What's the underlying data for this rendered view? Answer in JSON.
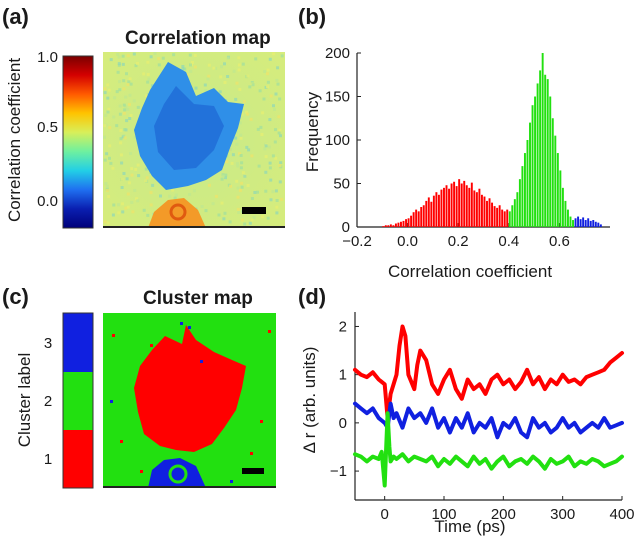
{
  "panels": {
    "a": {
      "letter": "(a)",
      "title": "Correlation map",
      "colorbar_label": "Correlation coefficient",
      "colorbar_ticks": [
        "1.0",
        "0.5",
        "0.0"
      ],
      "colormap": [
        "#7a0000",
        "#d40000",
        "#ff5a00",
        "#ffc400",
        "#d8ef5a",
        "#6ef0a0",
        "#22cfe6",
        "#1f6ff0",
        "#0a1fb0",
        "#00007a"
      ]
    },
    "b": {
      "letter": "(b)",
      "ylabel": "Frequency",
      "xlabel": "Correlation coefficient",
      "xticks": [
        "−0.2",
        "0.0",
        "0.2",
        "0.4",
        "0.6"
      ],
      "yticks": [
        "0",
        "50",
        "100",
        "150",
        "200"
      ]
    },
    "c": {
      "letter": "(c)",
      "title": "Cluster map",
      "colorbar_label": "Cluster label",
      "colorbar_ticks": [
        "3",
        "2",
        "1"
      ],
      "cluster_colors": {
        "1": "#ff0000",
        "2": "#22e010",
        "3": "#1020e0"
      }
    },
    "d": {
      "letter": "(d)",
      "ylabel": "Δ r (arb. units)",
      "xlabel": "Time (ps)",
      "xticks": [
        "0",
        "100",
        "200",
        "300",
        "400"
      ],
      "yticks": [
        "2",
        "1",
        "0",
        "−1"
      ]
    }
  },
  "chart_data": [
    {
      "type": "heatmap",
      "panel": "a",
      "title": "Correlation map",
      "colorbar_label": "Correlation coefficient",
      "colorbar_range": [
        -0.15,
        1.0
      ],
      "colorbar_ticks": [
        1.0,
        0.5,
        0.0
      ],
      "regions": [
        {
          "region": "background",
          "value": 0.52
        },
        {
          "region": "central blob",
          "value": 0.25
        },
        {
          "region": "bottom feature",
          "value": 0.75
        }
      ]
    },
    {
      "type": "bar",
      "panel": "b",
      "xlabel": "Correlation coefficient",
      "ylabel": "Frequency",
      "xlim": [
        -0.2,
        0.8
      ],
      "ylim": [
        0,
        200
      ],
      "bin_width": 0.01,
      "series": [
        {
          "color": "#ff0000",
          "x": [
            -0.1,
            -0.09,
            -0.08,
            -0.07,
            -0.06,
            -0.05,
            -0.04,
            -0.03,
            -0.02,
            -0.01,
            0.0,
            0.01,
            0.02,
            0.03,
            0.04,
            0.05,
            0.06,
            0.07,
            0.08,
            0.09,
            0.1,
            0.11,
            0.12,
            0.13,
            0.14,
            0.15,
            0.16,
            0.17,
            0.18,
            0.19,
            0.2,
            0.21,
            0.22,
            0.23,
            0.24,
            0.25,
            0.26,
            0.27,
            0.28,
            0.29,
            0.3,
            0.31,
            0.32,
            0.33,
            0.34,
            0.35,
            0.36,
            0.37,
            0.38,
            0.39
          ],
          "values": [
            1,
            2,
            2,
            3,
            2,
            4,
            5,
            6,
            7,
            9,
            10,
            13,
            17,
            20,
            18,
            23,
            25,
            30,
            34,
            29,
            36,
            40,
            37,
            43,
            45,
            48,
            44,
            50,
            52,
            47,
            55,
            50,
            53,
            48,
            45,
            51,
            42,
            40,
            44,
            37,
            35,
            30,
            33,
            28,
            24,
            22,
            25,
            20,
            18,
            20
          ]
        },
        {
          "color": "#22e010",
          "x": [
            0.4,
            0.41,
            0.42,
            0.43,
            0.44,
            0.45,
            0.46,
            0.47,
            0.48,
            0.49,
            0.5,
            0.51,
            0.52,
            0.53,
            0.54,
            0.55,
            0.56,
            0.57,
            0.58,
            0.59,
            0.6,
            0.61,
            0.62,
            0.63,
            0.64,
            0.65
          ],
          "values": [
            18,
            25,
            32,
            40,
            55,
            70,
            85,
            100,
            120,
            140,
            150,
            165,
            180,
            200,
            175,
            170,
            150,
            125,
            105,
            85,
            65,
            45,
            30,
            20,
            12,
            8
          ]
        },
        {
          "color": "#1020e0",
          "x": [
            0.66,
            0.67,
            0.68,
            0.69,
            0.7,
            0.71,
            0.72,
            0.73,
            0.74,
            0.75,
            0.76
          ],
          "values": [
            10,
            12,
            9,
            11,
            8,
            10,
            7,
            8,
            6,
            5,
            3
          ]
        }
      ]
    },
    {
      "type": "heatmap",
      "panel": "c",
      "title": "Cluster map",
      "colorbar_label": "Cluster label",
      "categories": [
        1,
        2,
        3
      ],
      "regions": [
        {
          "region": "background",
          "cluster": 2
        },
        {
          "region": "central blob",
          "cluster": 1
        },
        {
          "region": "bottom feature",
          "cluster": 3
        }
      ]
    },
    {
      "type": "line",
      "panel": "d",
      "xlabel": "Time (ps)",
      "ylabel": "Δ r (arb. units)",
      "xlim": [
        -50,
        400
      ],
      "ylim": [
        -1.6,
        2.3
      ],
      "series": [
        {
          "color": "#ff0000",
          "x": [
            -50,
            -40,
            -30,
            -20,
            -10,
            0,
            5,
            10,
            20,
            25,
            30,
            35,
            40,
            50,
            55,
            60,
            70,
            80,
            90,
            100,
            110,
            120,
            130,
            140,
            150,
            160,
            170,
            180,
            190,
            200,
            210,
            220,
            230,
            240,
            250,
            260,
            270,
            280,
            290,
            300,
            310,
            320,
            330,
            340,
            350,
            360,
            370,
            380,
            390,
            400
          ],
          "values": [
            1.1,
            1.0,
            0.95,
            1.05,
            0.9,
            0.8,
            0.1,
            0.6,
            1.0,
            1.6,
            2.0,
            1.8,
            1.0,
            0.7,
            1.2,
            1.5,
            1.3,
            0.8,
            0.6,
            0.9,
            1.1,
            0.7,
            0.5,
            0.9,
            0.7,
            0.8,
            0.6,
            0.9,
            1.0,
            0.8,
            0.9,
            0.7,
            0.85,
            1.1,
            0.8,
            0.95,
            0.7,
            0.9,
            0.8,
            1.0,
            0.85,
            0.9,
            0.8,
            0.95,
            1.0,
            1.05,
            1.1,
            1.25,
            1.35,
            1.45
          ]
        },
        {
          "color": "#1020e0",
          "x": [
            -50,
            -40,
            -30,
            -20,
            -10,
            0,
            5,
            10,
            15,
            20,
            30,
            40,
            50,
            60,
            70,
            80,
            90,
            100,
            110,
            120,
            130,
            140,
            150,
            160,
            170,
            180,
            190,
            200,
            210,
            220,
            230,
            240,
            250,
            260,
            270,
            280,
            290,
            300,
            310,
            320,
            330,
            340,
            350,
            360,
            370,
            380,
            390,
            400
          ],
          "values": [
            0.4,
            0.3,
            0.2,
            0.3,
            0.1,
            0.0,
            -0.1,
            0.4,
            0.1,
            0.2,
            -0.1,
            0.3,
            0.1,
            0.2,
            0.0,
            0.3,
            -0.1,
            0.1,
            -0.2,
            0.1,
            -0.1,
            0.2,
            -0.2,
            0.0,
            -0.1,
            0.1,
            -0.3,
            0.0,
            -0.1,
            0.1,
            -0.2,
            -0.3,
            0.1,
            -0.1,
            0.0,
            -0.2,
            -0.1,
            0.1,
            -0.1,
            0.0,
            -0.2,
            -0.1,
            0.0,
            -0.1,
            0.1,
            -0.1,
            -0.05,
            0.0
          ]
        },
        {
          "color": "#22e010",
          "x": [
            -50,
            -40,
            -30,
            -20,
            -10,
            -5,
            0,
            3,
            5,
            8,
            10,
            15,
            20,
            30,
            40,
            50,
            60,
            70,
            80,
            90,
            100,
            110,
            120,
            130,
            140,
            150,
            160,
            170,
            180,
            190,
            200,
            210,
            220,
            230,
            240,
            250,
            260,
            270,
            280,
            290,
            300,
            310,
            320,
            330,
            340,
            350,
            360,
            370,
            380,
            390,
            400
          ],
          "values": [
            -0.65,
            -0.7,
            -0.8,
            -0.7,
            -0.75,
            -0.6,
            -1.3,
            -0.4,
            0.2,
            -0.5,
            -0.8,
            -0.7,
            -0.75,
            -0.65,
            -0.8,
            -0.7,
            -0.75,
            -0.8,
            -0.7,
            -0.9,
            -0.75,
            -0.85,
            -0.7,
            -0.8,
            -0.9,
            -0.7,
            -0.85,
            -0.75,
            -0.95,
            -0.8,
            -0.7,
            -0.9,
            -0.8,
            -0.75,
            -0.85,
            -0.7,
            -0.8,
            -0.95,
            -0.75,
            -0.85,
            -0.8,
            -0.7,
            -0.9,
            -0.8,
            -0.85,
            -0.75,
            -0.8,
            -0.9,
            -0.85,
            -0.8,
            -0.7
          ]
        }
      ]
    }
  ]
}
